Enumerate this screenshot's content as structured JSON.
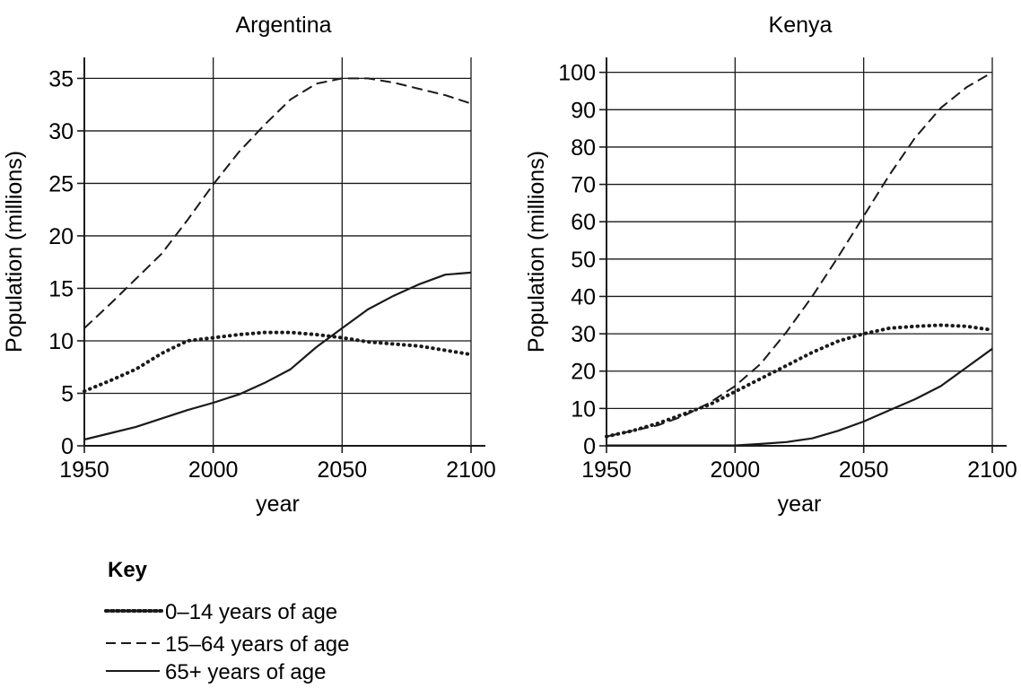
{
  "chart_data": [
    {
      "type": "line",
      "title": "Argentina",
      "xlabel": "year",
      "ylabel": "Population (millions)",
      "xlim": [
        1950,
        2100
      ],
      "ylim": [
        0,
        37
      ],
      "xticks": [
        1950,
        2000,
        2050,
        2100
      ],
      "xtick_labels": [
        "1950",
        "2000",
        "2050",
        "2100"
      ],
      "yticks": [
        0,
        5,
        10,
        15,
        20,
        25,
        30,
        35
      ],
      "ytick_labels": [
        "0",
        "5",
        "10",
        "15",
        "20",
        "25",
        "30",
        "35"
      ],
      "grid": true,
      "x": [
        1950,
        1960,
        1970,
        1980,
        1990,
        2000,
        2010,
        2020,
        2030,
        2040,
        2050,
        2060,
        2070,
        2080,
        2090,
        2100
      ],
      "series": [
        {
          "name": "0–14 years of age",
          "style": "dotted",
          "values": [
            5.2,
            6.2,
            7.3,
            8.8,
            10.0,
            10.3,
            10.6,
            10.8,
            10.8,
            10.6,
            10.3,
            9.9,
            9.7,
            9.5,
            9.1,
            8.7
          ]
        },
        {
          "name": "15–64 years of age",
          "style": "dashed",
          "values": [
            11.2,
            13.5,
            15.9,
            18.3,
            21.5,
            24.9,
            28.0,
            30.6,
            33.0,
            34.5,
            35.0,
            35.0,
            34.6,
            34.0,
            33.4,
            32.6
          ]
        },
        {
          "name": "65+ years of age",
          "style": "solid",
          "values": [
            0.6,
            1.2,
            1.8,
            2.6,
            3.4,
            4.1,
            4.9,
            6.0,
            7.3,
            9.4,
            11.2,
            13.0,
            14.3,
            15.4,
            16.3,
            16.5
          ]
        }
      ]
    },
    {
      "type": "line",
      "title": "Kenya",
      "xlabel": "year",
      "ylabel": "Population (millions)",
      "xlim": [
        1950,
        2100
      ],
      "ylim": [
        0,
        104
      ],
      "xticks": [
        1950,
        2000,
        2050,
        2100
      ],
      "xtick_labels": [
        "1950",
        "2000",
        "2050",
        "2100"
      ],
      "yticks": [
        0,
        10,
        20,
        30,
        40,
        50,
        60,
        70,
        80,
        90,
        100
      ],
      "ytick_labels": [
        "0",
        "10",
        "20",
        "30",
        "40",
        "50",
        "60",
        "70",
        "80",
        "90",
        "100"
      ],
      "grid": true,
      "x": [
        1950,
        1960,
        1970,
        1980,
        1990,
        2000,
        2010,
        2020,
        2030,
        2040,
        2050,
        2060,
        2070,
        2080,
        2090,
        2100
      ],
      "series": [
        {
          "name": "0–14 years of age",
          "style": "dotted",
          "values": [
            2.5,
            4.0,
            6.0,
            8.5,
            11.0,
            14.5,
            18.0,
            21.5,
            25.0,
            28.0,
            30.0,
            31.5,
            32.0,
            32.3,
            32.0,
            31.0
          ]
        },
        {
          "name": "15–64 years of age",
          "style": "dashed",
          "values": [
            2.5,
            4.0,
            5.5,
            8.0,
            11.5,
            16.0,
            22.0,
            30.5,
            40.0,
            50.5,
            61.5,
            72.5,
            82.5,
            90.5,
            96.0,
            100.0
          ]
        },
        {
          "name": "65+ years of age",
          "style": "solid",
          "values": [
            0.1,
            0.1,
            0.1,
            0.1,
            0.1,
            0.1,
            0.5,
            1.0,
            2.0,
            4.0,
            6.5,
            9.5,
            12.5,
            16.0,
            21.0,
            26.0
          ]
        }
      ]
    }
  ],
  "key": {
    "title": "Key",
    "items": [
      {
        "label": "0–14 years of age",
        "style": "dotted"
      },
      {
        "label": "15–64 years of age",
        "style": "dashed"
      },
      {
        "label": "65+ years of age",
        "style": "solid"
      }
    ]
  }
}
